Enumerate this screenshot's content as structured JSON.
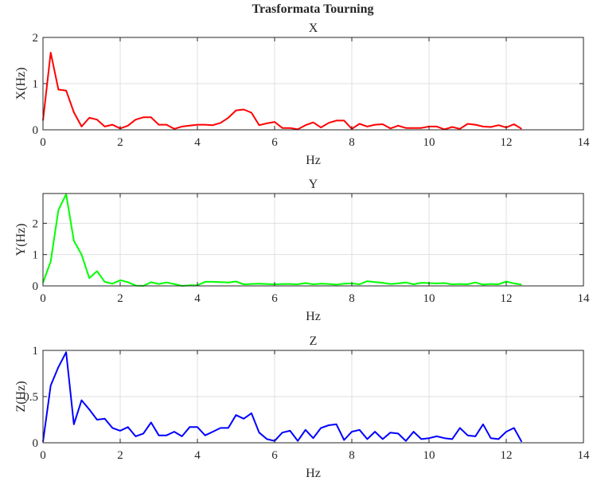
{
  "figure_title": "Trasformata Tourning",
  "chart_data": [
    {
      "type": "line",
      "title": "X",
      "xlabel": "Hz",
      "ylabel": "X(Hz)",
      "xlim": [
        0,
        14
      ],
      "ylim": [
        0,
        2
      ],
      "xticks": [
        0,
        2,
        4,
        6,
        8,
        10,
        12,
        14
      ],
      "yticks": [
        0,
        1,
        2
      ],
      "grid": true,
      "color": "#ff0000",
      "x": [
        0.0,
        0.2,
        0.4,
        0.6,
        0.8,
        1.0,
        1.2,
        1.4,
        1.6,
        1.8,
        2.0,
        2.2,
        2.4,
        2.6,
        2.8,
        3.0,
        3.2,
        3.4,
        3.6,
        3.8,
        4.0,
        4.2,
        4.4,
        4.6,
        4.8,
        5.0,
        5.2,
        5.4,
        5.6,
        5.8,
        6.0,
        6.2,
        6.4,
        6.6,
        6.8,
        7.0,
        7.2,
        7.4,
        7.6,
        7.8,
        8.0,
        8.2,
        8.4,
        8.6,
        8.8,
        9.0,
        9.2,
        9.4,
        9.6,
        9.8,
        10.0,
        10.2,
        10.4,
        10.6,
        10.8,
        11.0,
        11.2,
        11.4,
        11.6,
        11.8,
        12.0,
        12.2,
        12.4
      ],
      "y": [
        0.2,
        1.67,
        0.87,
        0.85,
        0.38,
        0.07,
        0.26,
        0.22,
        0.07,
        0.11,
        0.03,
        0.09,
        0.22,
        0.27,
        0.27,
        0.11,
        0.11,
        0.02,
        0.07,
        0.09,
        0.11,
        0.11,
        0.1,
        0.15,
        0.26,
        0.42,
        0.44,
        0.37,
        0.1,
        0.14,
        0.17,
        0.04,
        0.04,
        0.01,
        0.1,
        0.16,
        0.05,
        0.15,
        0.2,
        0.2,
        0.02,
        0.13,
        0.07,
        0.11,
        0.12,
        0.03,
        0.09,
        0.04,
        0.04,
        0.04,
        0.07,
        0.07,
        0.01,
        0.06,
        0.02,
        0.13,
        0.11,
        0.07,
        0.06,
        0.1,
        0.05,
        0.12,
        0.02
      ]
    },
    {
      "type": "line",
      "title": "Y",
      "xlabel": "Hz",
      "ylabel": "Y(Hz)",
      "xlim": [
        0,
        14
      ],
      "ylim": [
        0,
        2.95
      ],
      "xticks": [
        0,
        2,
        4,
        6,
        8,
        10,
        12,
        14
      ],
      "yticks": [
        0,
        1,
        2
      ],
      "grid": true,
      "color": "#00ff00",
      "x": [
        0.0,
        0.2,
        0.4,
        0.6,
        0.8,
        1.0,
        1.2,
        1.4,
        1.6,
        1.8,
        2.0,
        2.2,
        2.4,
        2.6,
        2.8,
        3.0,
        3.2,
        3.4,
        3.6,
        3.8,
        4.0,
        4.2,
        4.4,
        4.6,
        4.8,
        5.0,
        5.2,
        5.4,
        5.6,
        5.8,
        6.0,
        6.2,
        6.4,
        6.6,
        6.8,
        7.0,
        7.2,
        7.4,
        7.6,
        7.8,
        8.0,
        8.2,
        8.4,
        8.6,
        8.8,
        9.0,
        9.2,
        9.4,
        9.6,
        9.8,
        10.0,
        10.2,
        10.4,
        10.6,
        10.8,
        11.0,
        11.2,
        11.4,
        11.6,
        11.8,
        12.0,
        12.2,
        12.4
      ],
      "y": [
        0.1,
        0.78,
        2.42,
        2.93,
        1.44,
        1.0,
        0.25,
        0.47,
        0.13,
        0.07,
        0.18,
        0.12,
        0.01,
        0.0,
        0.12,
        0.06,
        0.11,
        0.06,
        0.0,
        0.02,
        0.02,
        0.13,
        0.13,
        0.12,
        0.11,
        0.14,
        0.05,
        0.06,
        0.07,
        0.06,
        0.05,
        0.06,
        0.06,
        0.05,
        0.09,
        0.05,
        0.07,
        0.06,
        0.04,
        0.07,
        0.08,
        0.05,
        0.15,
        0.12,
        0.1,
        0.06,
        0.08,
        0.11,
        0.05,
        0.1,
        0.09,
        0.08,
        0.09,
        0.05,
        0.06,
        0.05,
        0.11,
        0.04,
        0.06,
        0.05,
        0.14,
        0.08,
        0.04
      ]
    },
    {
      "type": "line",
      "title": "Z",
      "xlabel": "Hz",
      "ylabel": "Z(Hz)",
      "xlim": [
        0,
        14
      ],
      "ylim": [
        0,
        1
      ],
      "xticks": [
        0,
        2,
        4,
        6,
        8,
        10,
        12,
        14
      ],
      "yticks": [
        0,
        0.5,
        1
      ],
      "grid": true,
      "color": "#0000ff",
      "x": [
        0.0,
        0.2,
        0.4,
        0.6,
        0.8,
        1.0,
        1.2,
        1.4,
        1.6,
        1.8,
        2.0,
        2.2,
        2.4,
        2.6,
        2.8,
        3.0,
        3.2,
        3.4,
        3.6,
        3.8,
        4.0,
        4.2,
        4.4,
        4.6,
        4.8,
        5.0,
        5.2,
        5.4,
        5.6,
        5.8,
        6.0,
        6.2,
        6.4,
        6.6,
        6.8,
        7.0,
        7.2,
        7.4,
        7.6,
        7.8,
        8.0,
        8.2,
        8.4,
        8.6,
        8.8,
        9.0,
        9.2,
        9.4,
        9.6,
        9.8,
        10.0,
        10.2,
        10.4,
        10.6,
        10.8,
        11.0,
        11.2,
        11.4,
        11.6,
        11.8,
        12.0,
        12.2,
        12.4
      ],
      "y": [
        0.01,
        0.62,
        0.82,
        0.98,
        0.2,
        0.46,
        0.36,
        0.25,
        0.26,
        0.16,
        0.13,
        0.17,
        0.07,
        0.1,
        0.22,
        0.08,
        0.08,
        0.12,
        0.07,
        0.17,
        0.17,
        0.08,
        0.12,
        0.16,
        0.16,
        0.3,
        0.26,
        0.32,
        0.11,
        0.04,
        0.02,
        0.11,
        0.13,
        0.02,
        0.14,
        0.05,
        0.16,
        0.19,
        0.2,
        0.03,
        0.12,
        0.14,
        0.04,
        0.12,
        0.04,
        0.11,
        0.1,
        0.02,
        0.12,
        0.04,
        0.05,
        0.07,
        0.05,
        0.04,
        0.16,
        0.08,
        0.07,
        0.2,
        0.05,
        0.04,
        0.12,
        0.16,
        0.01
      ]
    }
  ]
}
